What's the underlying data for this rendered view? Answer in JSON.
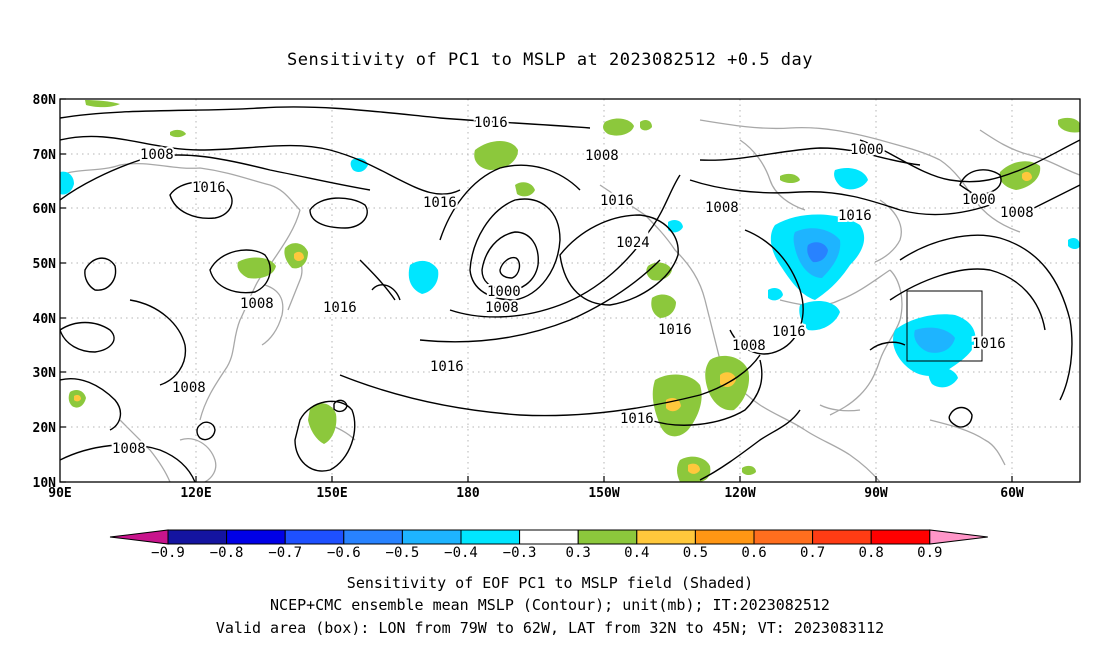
{
  "title": "Sensitivity of PC1 to MSLP at 2023082512 +0.5 day",
  "axes": {
    "lat_labels": [
      "80N",
      "70N",
      "60N",
      "50N",
      "40N",
      "30N",
      "20N",
      "10N"
    ],
    "lon_labels": [
      "90E",
      "120E",
      "150E",
      "180",
      "150W",
      "120W",
      "90W",
      "60W"
    ]
  },
  "contour_labels": [
    "1016",
    "1008",
    "1016",
    "1016",
    "1016",
    "1008",
    "1016",
    "1000",
    "1008",
    "1008",
    "1024",
    "1000",
    "1008",
    "1016",
    "1016",
    "1008",
    "1016",
    "1016",
    "1008",
    "1008",
    "1016",
    "1016",
    "1000",
    "1008",
    "1016"
  ],
  "colorbar": {
    "tick_labels": [
      "-0.9",
      "-0.8",
      "-0.7",
      "-0.6",
      "-0.5",
      "-0.4",
      "-0.3",
      "0.3",
      "0.4",
      "0.5",
      "0.6",
      "0.7",
      "0.8",
      "0.9"
    ],
    "colors": [
      "#c8148c",
      "#1414a0",
      "#0000e6",
      "#1e50ff",
      "#2882ff",
      "#1eb4ff",
      "#00e6ff",
      "#ffffff",
      "#8cc83c",
      "#ffc83c",
      "#ff9614",
      "#ff6e1e",
      "#ff3c14",
      "#ff0000",
      "#ff96c8"
    ]
  },
  "valid_box": {
    "lon_from": "79W",
    "lon_to": "62W",
    "lat_from": "32N",
    "lat_to": "45N"
  },
  "captions": {
    "line1": "Sensitivity of EOF PC1 to MSLP field (Shaded)",
    "line2": "NCEP+CMC ensemble mean MSLP (Contour); unit(mb); IT:2023082512",
    "line3": "Valid area (box): LON from 79W to 62W, LAT from 32N to 45N; VT: 2023083112"
  }
}
